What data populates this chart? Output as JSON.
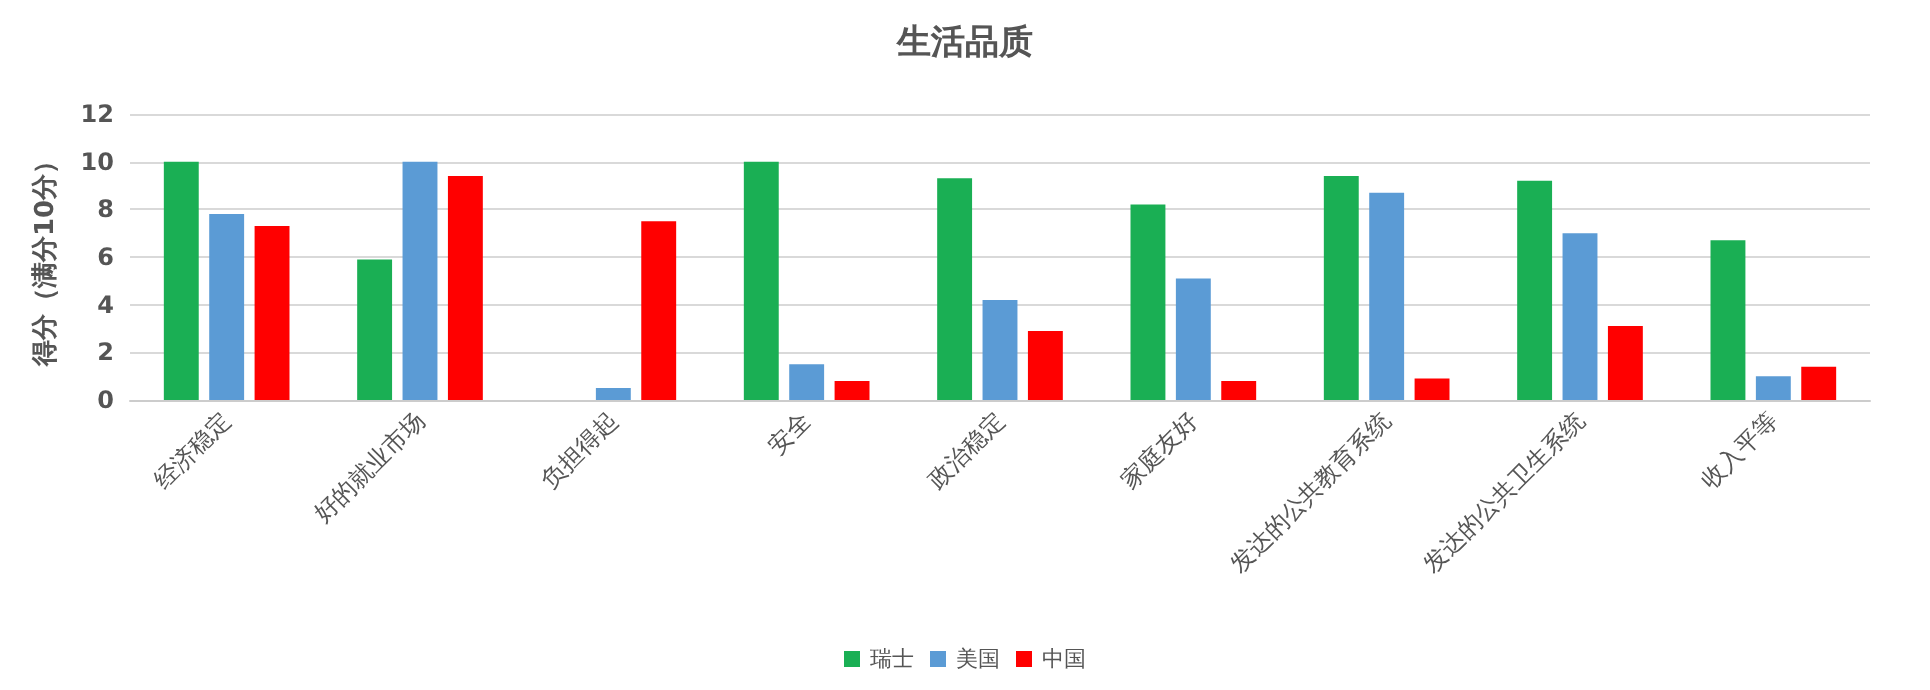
{
  "chart_data": {
    "type": "bar",
    "title": "生活品质",
    "ylabel": "得分（满分10分）",
    "categories": [
      "经济稳定",
      "好的就业市场",
      "负担得起",
      "安全",
      "政治稳定",
      "家庭友好",
      "发达的公共教育系统",
      "发达的公共卫生系统",
      "收入平等"
    ],
    "series": [
      {
        "name": "瑞士",
        "color": "#1aaf54",
        "values": [
          10,
          5.9,
          0,
          10,
          9.3,
          8.2,
          9.4,
          9.2,
          6.7
        ]
      },
      {
        "name": "美国",
        "color": "#5b9bd5",
        "values": [
          7.8,
          10,
          0.5,
          1.5,
          4.2,
          5.1,
          8.7,
          7,
          1
        ]
      },
      {
        "name": "中国",
        "color": "#ff0000",
        "values": [
          7.3,
          9.4,
          7.5,
          0.8,
          2.9,
          0.8,
          0.9,
          3.1,
          1.4
        ]
      }
    ],
    "ylim": [
      0,
      12
    ],
    "yticks": [
      0,
      2,
      4,
      6,
      8,
      10,
      12
    ],
    "grid": "y",
    "legend": "bottom"
  }
}
